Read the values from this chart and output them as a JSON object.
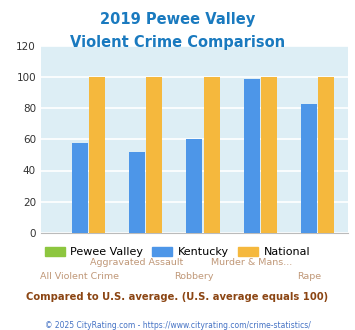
{
  "title_line1": "2019 Pewee Valley",
  "title_line2": "Violent Crime Comparison",
  "title_color": "#1a7abf",
  "cat_line1": [
    "",
    "Aggravated Assault",
    "",
    "Murder & Mans...",
    ""
  ],
  "cat_line2": [
    "All Violent Crime",
    "",
    "Robbery",
    "",
    "Rape"
  ],
  "pewee_valley": [
    0,
    0,
    0,
    0,
    0
  ],
  "kentucky": [
    58,
    52,
    60,
    99,
    83
  ],
  "national": [
    100,
    100,
    100,
    100,
    100
  ],
  "pewee_color": "#8dc63f",
  "kentucky_color": "#4d96e8",
  "national_color": "#f5b83d",
  "ylim": [
    0,
    120
  ],
  "yticks": [
    0,
    20,
    40,
    60,
    80,
    100,
    120
  ],
  "plot_bg": "#ddeef5",
  "grid_color": "#ffffff",
  "xlabel_color_top": "#c09878",
  "xlabel_color_bot": "#c09878",
  "footer_text": "Compared to U.S. average. (U.S. average equals 100)",
  "footer_color": "#8b4513",
  "copyright_text": "© 2025 CityRating.com - https://www.cityrating.com/crime-statistics/",
  "copyright_color": "#4472c4",
  "legend_labels": [
    "Pewee Valley",
    "Kentucky",
    "National"
  ]
}
